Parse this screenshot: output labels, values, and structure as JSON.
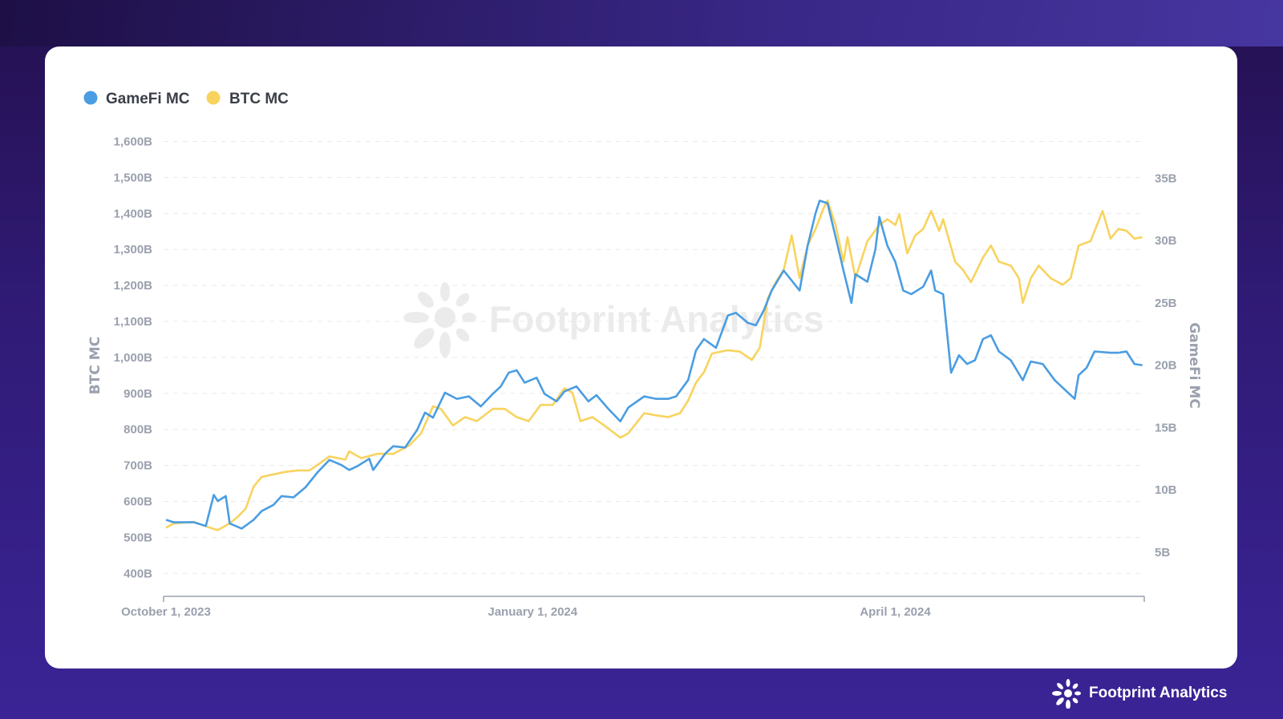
{
  "brand": {
    "name": "Footprint Analytics",
    "watermark": "Footprint Analytics"
  },
  "colors": {
    "gamefi": "#4a9de2",
    "btc": "#f8d35e",
    "axis_text": "#9aa0ad"
  },
  "chart_data": {
    "type": "line",
    "title": "",
    "legend": {
      "position": "top-left",
      "items": [
        "GameFi MC",
        "BTC MC"
      ]
    },
    "x_start_date": "2023-10-01",
    "x_unit": "days since start",
    "xticks": [
      {
        "label": "October 1, 2023",
        "day": 0
      },
      {
        "label": "January 1, 2024",
        "day": 92
      },
      {
        "label": "April 1, 2024",
        "day": 183
      }
    ],
    "xlim": [
      0,
      246
    ],
    "y_left": {
      "label": "BTC MC",
      "ticks": [
        "400B",
        "500B",
        "600B",
        "700B",
        "800B",
        "900B",
        "1,000B",
        "1,100B",
        "1,200B",
        "1,300B",
        "1,400B",
        "1,500B",
        "1,600B"
      ],
      "tick_values": [
        400,
        500,
        600,
        700,
        800,
        900,
        1000,
        1100,
        1200,
        1300,
        1400,
        1500,
        1600
      ],
      "ylim": [
        400,
        1600
      ],
      "unit": "B USD"
    },
    "y_right": {
      "label": "GameFi MC",
      "ticks": [
        "5B",
        "10B",
        "15B",
        "20B",
        "25B",
        "30B",
        "35B"
      ],
      "tick_values": [
        5,
        10,
        15,
        20,
        25,
        30,
        35
      ],
      "unit": "B USD"
    },
    "grid": true,
    "series": [
      {
        "name": "GameFi MC",
        "axis": "right",
        "days": [
          0,
          2,
          7,
          10,
          12,
          13,
          15,
          16,
          19,
          22,
          24,
          27,
          29,
          32,
          35,
          38,
          41,
          44,
          46,
          48,
          51,
          52,
          55,
          57,
          60,
          63,
          65,
          67,
          70,
          73,
          76,
          79,
          82,
          84,
          86,
          88,
          90,
          93,
          95,
          98,
          100,
          103,
          106,
          108,
          111,
          114,
          116,
          120,
          123,
          126,
          128,
          131,
          133,
          135,
          138,
          141,
          143,
          146,
          148,
          150,
          152,
          155,
          159,
          161,
          163,
          164,
          166,
          168,
          170,
          172,
          173,
          176,
          178,
          179,
          181,
          183,
          185,
          187,
          190,
          192,
          193,
          195,
          197,
          199,
          201,
          203,
          205,
          207,
          209,
          212,
          215,
          217,
          220,
          223,
          226,
          228,
          229,
          231,
          233,
          237,
          239,
          241,
          243,
          245
        ],
        "values": [
          7.6,
          7.4,
          7.4,
          7.1,
          9.6,
          9.1,
          9.5,
          7.3,
          6.9,
          7.6,
          8.3,
          8.8,
          9.5,
          9.4,
          10.2,
          11.4,
          12.4,
          12.0,
          11.6,
          11.9,
          12.5,
          11.6,
          12.9,
          13.5,
          13.4,
          14.8,
          16.2,
          15.8,
          17.8,
          17.3,
          17.5,
          16.7,
          17.7,
          18.3,
          19.4,
          19.6,
          18.6,
          19.0,
          17.7,
          17.1,
          17.9,
          18.3,
          17.1,
          17.6,
          16.5,
          15.5,
          16.6,
          17.5,
          17.3,
          17.3,
          17.5,
          18.8,
          21.2,
          22.1,
          21.4,
          24.0,
          24.2,
          23.4,
          23.2,
          24.4,
          26.0,
          27.6,
          26.0,
          29.6,
          32.2,
          33.2,
          33.0,
          30.3,
          27.6,
          25.0,
          27.3,
          26.7,
          29.3,
          31.9,
          29.6,
          28.3,
          26.0,
          25.7,
          26.3,
          27.6,
          26.0,
          25.7,
          19.4,
          20.8,
          20.1,
          20.4,
          22.1,
          22.4,
          21.1,
          20.4,
          18.8,
          20.3,
          20.1,
          18.8,
          17.9,
          17.3,
          19.2,
          19.8,
          21.1,
          21.0,
          21.0,
          21.1,
          20.1,
          20.0
        ]
      },
      {
        "name": "BTC MC",
        "axis": "left",
        "days": [
          0,
          2,
          7,
          11,
          13,
          16,
          18,
          20,
          22,
          24,
          27,
          30,
          33,
          36,
          39,
          41,
          45,
          46,
          49,
          53,
          57,
          61,
          64,
          67,
          69,
          72,
          75,
          78,
          82,
          85,
          88,
          91,
          94,
          97,
          100,
          102,
          104,
          107,
          110,
          114,
          116,
          120,
          123,
          126,
          129,
          131,
          133,
          135,
          137,
          141,
          144,
          147,
          149,
          151,
          153,
          155,
          157,
          159,
          161,
          163,
          165,
          166,
          168,
          170,
          171,
          173,
          176,
          179,
          181,
          183,
          184,
          186,
          188,
          190,
          192,
          194,
          195,
          198,
          200,
          202,
          205,
          207,
          209,
          212,
          214,
          215,
          217,
          219,
          222,
          225,
          227,
          229,
          232,
          235,
          237,
          239,
          241,
          243,
          245
        ],
        "values": [
          527,
          539,
          543,
          527,
          520,
          539,
          557,
          580,
          641,
          668,
          675,
          682,
          686,
          686,
          709,
          725,
          716,
          739,
          720,
          732,
          732,
          755,
          789,
          864,
          857,
          811,
          834,
          823,
          857,
          857,
          834,
          823,
          868,
          868,
          914,
          902,
          823,
          834,
          811,
          777,
          789,
          845,
          839,
          834,
          845,
          880,
          930,
          959,
          1011,
          1020,
          1016,
          993,
          1027,
          1164,
          1209,
          1243,
          1339,
          1220,
          1311,
          1357,
          1414,
          1436,
          1368,
          1266,
          1334,
          1220,
          1323,
          1368,
          1384,
          1368,
          1398,
          1289,
          1339,
          1357,
          1407,
          1352,
          1384,
          1266,
          1243,
          1209,
          1277,
          1311,
          1266,
          1255,
          1220,
          1152,
          1220,
          1255,
          1220,
          1202,
          1220,
          1311,
          1323,
          1407,
          1330,
          1357,
          1352,
          1330,
          1334
        ]
      }
    ]
  }
}
